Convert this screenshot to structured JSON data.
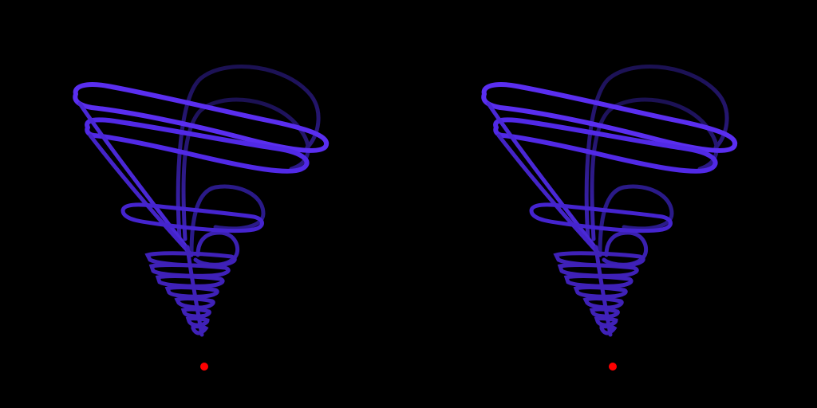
{
  "scene": {
    "background_color": "#000000",
    "trail_color_bright": "#5a2ef0",
    "trail_color_mid": "#3f22bf",
    "trail_color_dark": "#1d1257",
    "marker_color": "#ff0000",
    "views": [
      {
        "id": "left",
        "type": "stereo-view"
      },
      {
        "id": "right",
        "type": "stereo-view"
      }
    ]
  }
}
